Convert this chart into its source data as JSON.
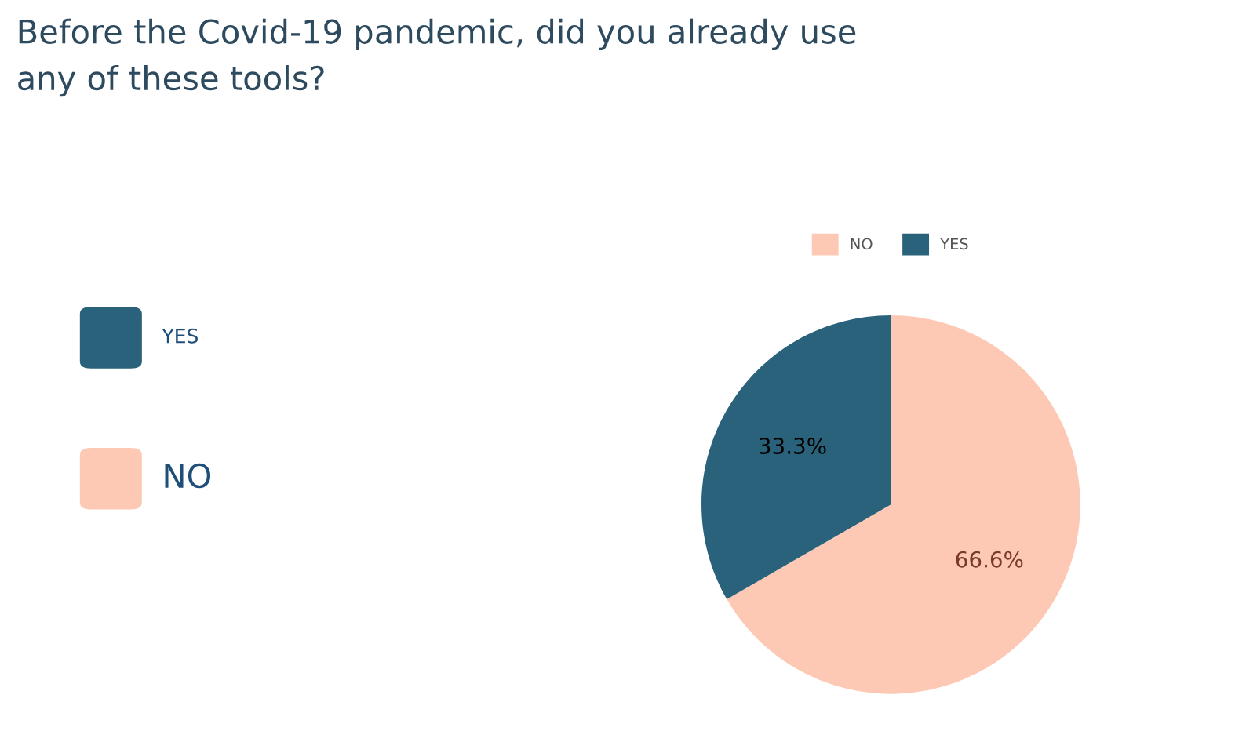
{
  "chart_data": {
    "type": "pie",
    "title": "Before the Covid-19 pandemic, did you already use\nany of these tools?",
    "categories": [
      "NO",
      "YES"
    ],
    "values": [
      66.6,
      33.3
    ],
    "value_labels": [
      "66.6%",
      "33.3%"
    ],
    "colors": [
      "#fdc9b5",
      "#29627a"
    ],
    "legend": "top"
  }
}
